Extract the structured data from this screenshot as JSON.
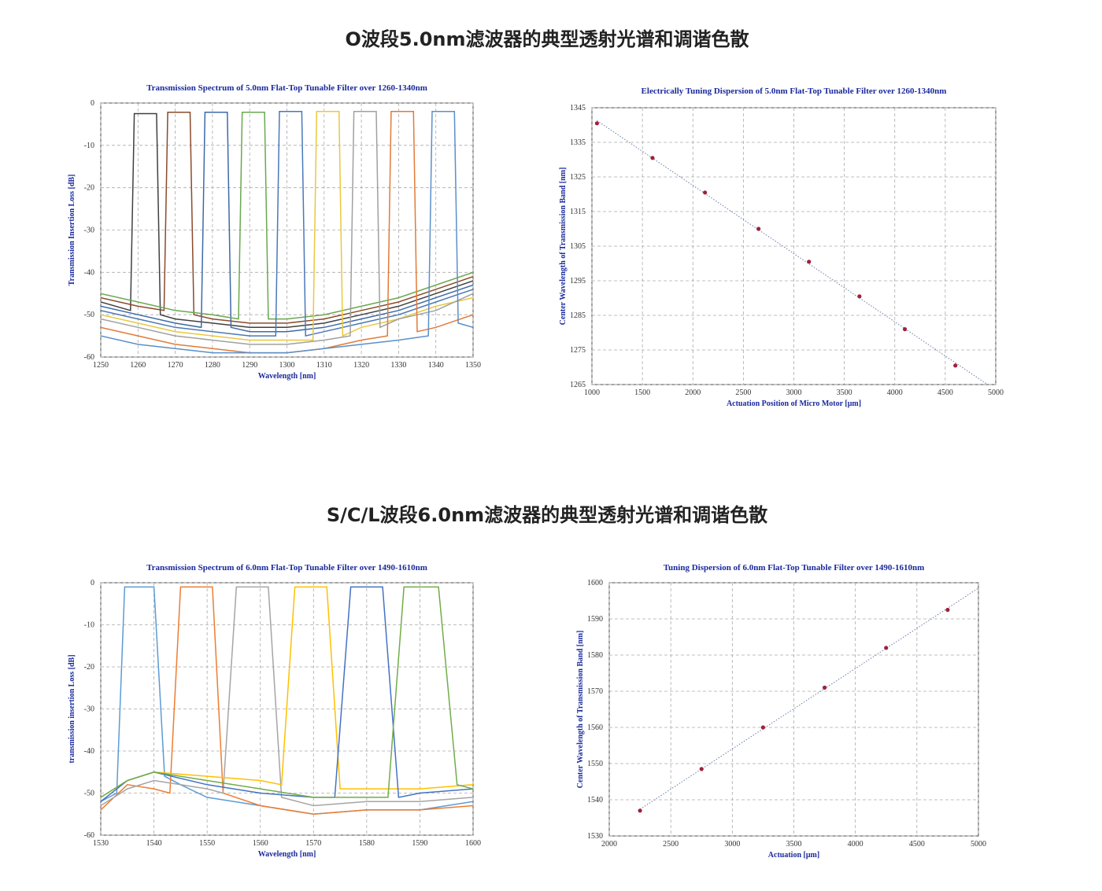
{
  "headings": [
    "O波段5.0nm滤波器的典型透射光谱和调谐色散",
    "S/C/L波段6.0nm滤波器的典型透射光谱和调谐色散"
  ],
  "chart_data": [
    {
      "type": "line",
      "title": "Transmission Spectrum of 5.0nm Flat-Top Tunable Filter over 1260-1340nm",
      "x_label": "Wavelength [nm]",
      "y_label": "Transmission Insertion Loss [dB]",
      "xlim": [
        1250,
        1350
      ],
      "xticks": [
        1250,
        1260,
        1270,
        1280,
        1290,
        1300,
        1310,
        1320,
        1330,
        1340,
        1350
      ],
      "ylim": [
        -60,
        0
      ],
      "yticks": [
        0,
        -10,
        -20,
        -30,
        -40,
        -50,
        -60
      ],
      "grid": true,
      "series": [
        {
          "color": "#404040",
          "x": [
            1250,
            1258,
            1259,
            1265,
            1266,
            1270,
            1280,
            1290,
            1300,
            1310,
            1320,
            1330,
            1340,
            1350
          ],
          "values": [
            -47,
            -49,
            -2.5,
            -2.5,
            -50,
            -51,
            -52,
            -53,
            -53,
            -52,
            -50,
            -48,
            -45,
            -42
          ]
        },
        {
          "color": "#8b4a2b",
          "x": [
            1250,
            1260,
            1267,
            1268,
            1274,
            1275,
            1280,
            1290,
            1300,
            1310,
            1320,
            1330,
            1340,
            1350
          ],
          "values": [
            -46,
            -48,
            -49,
            -2.2,
            -2.2,
            -50,
            -51,
            -52,
            -52,
            -51,
            -49,
            -47,
            -44,
            -41
          ]
        },
        {
          "color": "#3d6aa8",
          "x": [
            1250,
            1260,
            1270,
            1277,
            1278,
            1284,
            1285,
            1290,
            1300,
            1310,
            1320,
            1330,
            1340,
            1350
          ],
          "values": [
            -48,
            -50,
            -52,
            -53,
            -2.2,
            -2.2,
            -53,
            -54,
            -54,
            -53,
            -51,
            -49,
            -46,
            -43
          ]
        },
        {
          "color": "#6aa84f",
          "x": [
            1250,
            1260,
            1270,
            1280,
            1287,
            1288,
            1294,
            1295,
            1300,
            1310,
            1320,
            1330,
            1340,
            1350
          ],
          "values": [
            -45,
            -47,
            -49,
            -50,
            -51,
            -2.2,
            -2.2,
            -51,
            -51,
            -50,
            -48,
            -46,
            -43,
            -40
          ]
        },
        {
          "color": "#4a78b8",
          "x": [
            1250,
            1260,
            1270,
            1280,
            1290,
            1297,
            1298,
            1304,
            1305,
            1310,
            1320,
            1330,
            1340,
            1350
          ],
          "values": [
            -49,
            -51,
            -53,
            -54,
            -55,
            -55,
            -2,
            -2,
            -55,
            -54,
            -52,
            -50,
            -47,
            -44
          ]
        },
        {
          "color": "#e8c840",
          "x": [
            1250,
            1260,
            1270,
            1280,
            1290,
            1300,
            1307,
            1308,
            1314,
            1315,
            1320,
            1330,
            1340,
            1350
          ],
          "values": [
            -50,
            -52,
            -54,
            -55,
            -56,
            -56,
            -56,
            -2,
            -2,
            -55,
            -53,
            -51,
            -48,
            -46
          ]
        },
        {
          "color": "#a0a0a0",
          "x": [
            1250,
            1260,
            1270,
            1280,
            1290,
            1300,
            1310,
            1317,
            1318,
            1324,
            1325,
            1330,
            1340,
            1350
          ],
          "values": [
            -51,
            -53,
            -55,
            -56,
            -57,
            -57,
            -56,
            -55,
            -2,
            -2,
            -53,
            -51,
            -49,
            -45
          ]
        },
        {
          "color": "#e07b39",
          "x": [
            1250,
            1260,
            1270,
            1280,
            1290,
            1300,
            1310,
            1320,
            1327,
            1328,
            1334,
            1335,
            1340,
            1350
          ],
          "values": [
            -53,
            -55,
            -57,
            -58,
            -59,
            -59,
            -58,
            -56,
            -55,
            -2,
            -2,
            -54,
            -53,
            -50
          ]
        },
        {
          "color": "#5b8fc9",
          "x": [
            1250,
            1260,
            1270,
            1280,
            1290,
            1300,
            1310,
            1320,
            1330,
            1338,
            1339,
            1345,
            1346,
            1350
          ],
          "values": [
            -55,
            -57,
            -58,
            -59,
            -59,
            -59,
            -58,
            -57,
            -56,
            -55,
            -2,
            -2,
            -52,
            -53
          ]
        }
      ]
    },
    {
      "type": "scatter",
      "title": "Electrically Tuning Dispersion of 5.0nm Flat-Top Tunable Filter over 1260-1340nm",
      "x_label": "Actuation Position of Micro Motor [μm]",
      "y_label": "Center Wavelength of Transmission Band [nm]",
      "xlim": [
        1000,
        5000
      ],
      "xticks": [
        1000,
        1500,
        2000,
        2500,
        3000,
        3500,
        4000,
        4500,
        5000
      ],
      "ylim": [
        1265,
        1345
      ],
      "yticks": [
        1265,
        1275,
        1285,
        1295,
        1305,
        1315,
        1325,
        1335,
        1345
      ],
      "grid": true,
      "color": "#a0203a",
      "trendline": "linear",
      "x": [
        1050,
        1600,
        2120,
        2650,
        3150,
        3650,
        4100,
        4600
      ],
      "values": [
        1340.5,
        1330.5,
        1320.5,
        1310,
        1300.5,
        1290.5,
        1281,
        1270.5
      ]
    },
    {
      "type": "line",
      "title": "Transmission Spectrum of 6.0nm Flat-Top Tunable Filter over 1490-1610nm",
      "x_label": "Wavelength [nm]",
      "y_label": "transmission insertion Loss [dB]",
      "xlim": [
        1530,
        1600
      ],
      "xticks": [
        1530,
        1540,
        1550,
        1560,
        1570,
        1580,
        1590,
        1600
      ],
      "ylim": [
        -60,
        0
      ],
      "yticks": [
        0,
        -10,
        -20,
        -30,
        -40,
        -50,
        -60
      ],
      "grid": true,
      "series": [
        {
          "color": "#5b9bd5",
          "x": [
            1530,
            1533,
            1534.5,
            1540,
            1542,
            1545,
            1550,
            1560,
            1570,
            1580,
            1590,
            1600
          ],
          "values": [
            -52,
            -50,
            -1,
            -1,
            -46,
            -48,
            -51,
            -53,
            -55,
            -54,
            -54,
            -52
          ]
        },
        {
          "color": "#ed7d31",
          "x": [
            1530,
            1535,
            1540,
            1543,
            1545,
            1551,
            1553,
            1560,
            1570,
            1580,
            1590,
            1600
          ],
          "values": [
            -54,
            -48,
            -49,
            -50,
            -1,
            -1,
            -50,
            -53,
            -55,
            -54,
            -54,
            -53
          ]
        },
        {
          "color": "#a5a5a5",
          "x": [
            1530,
            1535,
            1540,
            1545,
            1550,
            1553,
            1555.5,
            1561.5,
            1564,
            1570,
            1580,
            1590,
            1600
          ],
          "values": [
            -53,
            -49,
            -47,
            -48,
            -49,
            -50,
            -1,
            -1,
            -51,
            -53,
            -52,
            -52,
            -51
          ]
        },
        {
          "color": "#ffc000",
          "x": [
            1530,
            1535,
            1540,
            1550,
            1560,
            1564,
            1566.5,
            1572.5,
            1575,
            1580,
            1590,
            1600
          ],
          "values": [
            -51,
            -47,
            -45,
            -46,
            -47,
            -48,
            -1,
            -1,
            -49,
            -49,
            -49,
            -48
          ]
        },
        {
          "color": "#4472c4",
          "x": [
            1530,
            1535,
            1540,
            1550,
            1560,
            1570,
            1574,
            1577,
            1583,
            1586,
            1590,
            1600
          ],
          "values": [
            -52,
            -47,
            -45,
            -48,
            -50,
            -51,
            -51,
            -1,
            -1,
            -51,
            -50,
            -49
          ]
        },
        {
          "color": "#70ad47",
          "x": [
            1530,
            1535,
            1540,
            1550,
            1560,
            1570,
            1580,
            1584,
            1587,
            1593.5,
            1597,
            1600
          ],
          "values": [
            -51,
            -47,
            -45,
            -47,
            -49,
            -51,
            -51,
            -51,
            -1,
            -1,
            -48,
            -49
          ]
        }
      ]
    },
    {
      "type": "scatter",
      "title": "Tuning Dispersion of 6.0nm Flat-Top Tunable Filter over 1490-1610nm",
      "x_label": "Actuation [μm]",
      "y_label": "Center Wavelength of Transmission Band [nm]",
      "xlim": [
        2000,
        5000
      ],
      "xticks": [
        2000,
        2500,
        3000,
        3500,
        4000,
        4500,
        5000
      ],
      "ylim": [
        1530,
        1600
      ],
      "yticks": [
        1530,
        1540,
        1550,
        1560,
        1570,
        1580,
        1590,
        1600
      ],
      "grid": true,
      "color": "#a0203a",
      "trendline": "linear",
      "x": [
        2250,
        2750,
        3250,
        3750,
        4250,
        4750
      ],
      "values": [
        1537,
        1548.5,
        1560,
        1571,
        1582,
        1592.5
      ]
    }
  ]
}
